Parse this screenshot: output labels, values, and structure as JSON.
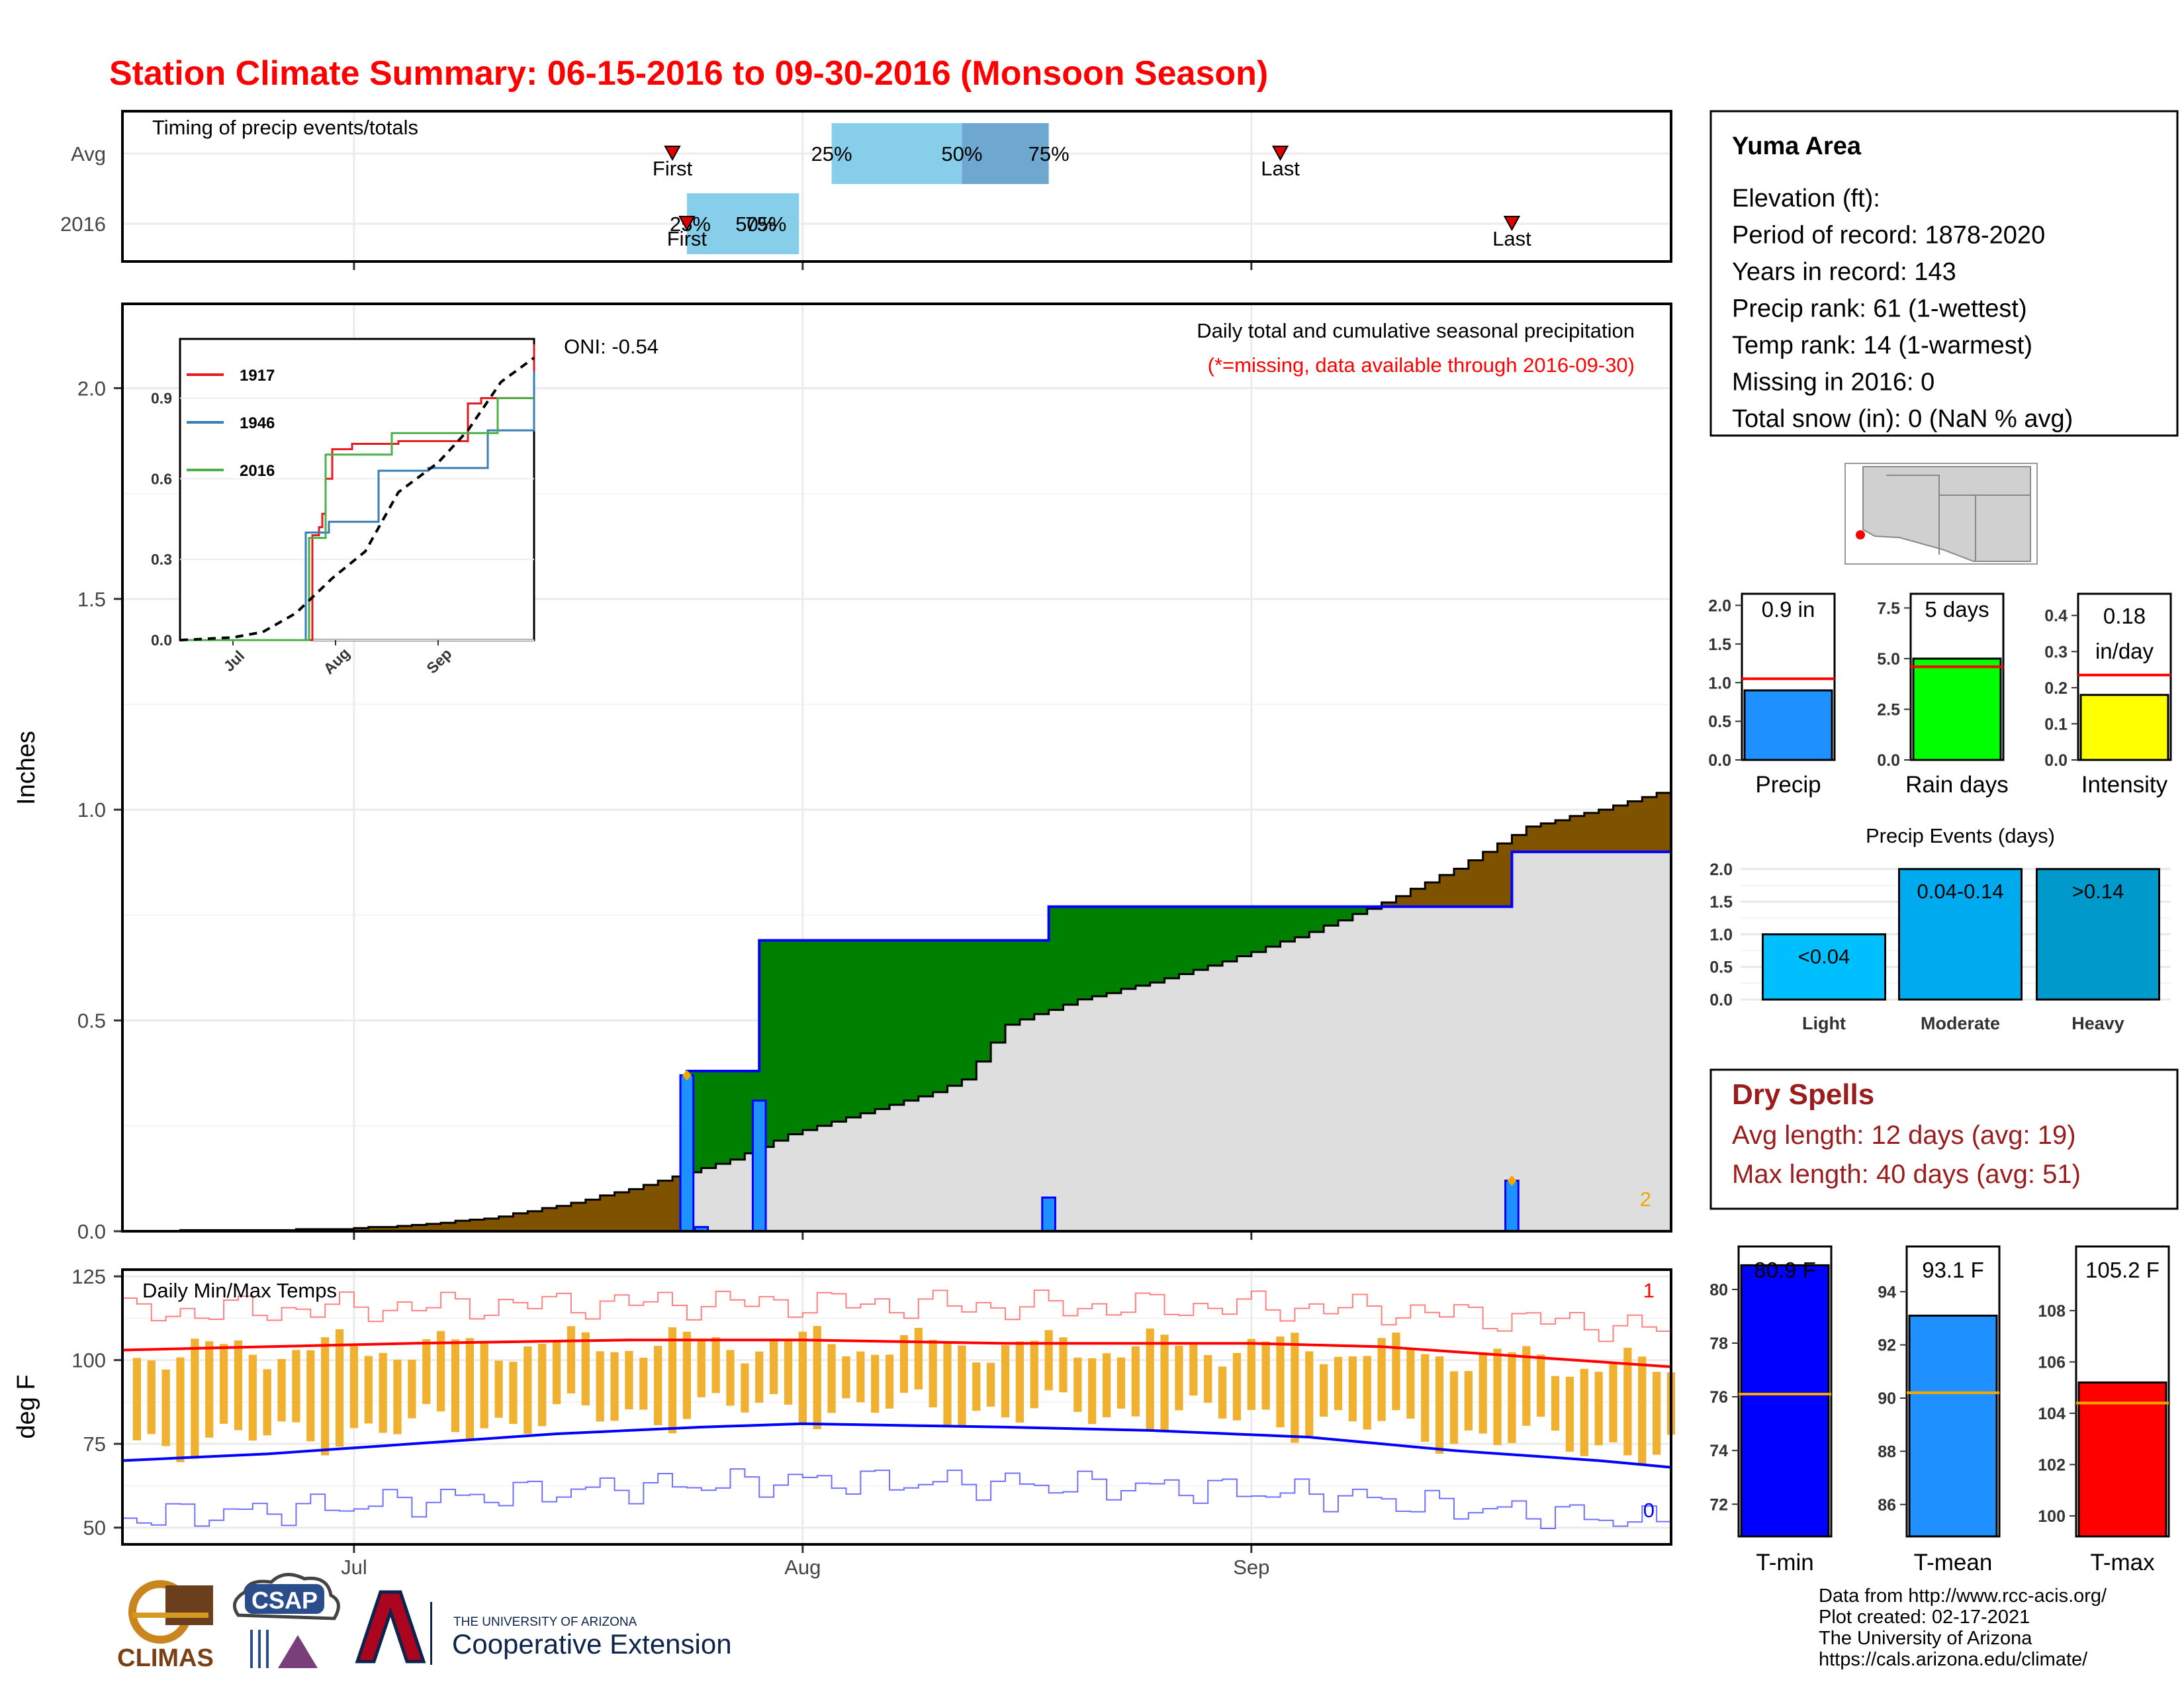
{
  "title": "Station Climate Summary: 06-15-2016 to 09-30-2016 (Monsoon Season)",
  "colors": {
    "title": "#ff0000",
    "brown": "#7f5200",
    "green": "#008000",
    "gray": "#dedede",
    "blue_bar": "#1e90ff",
    "blue_line": "#0000ff",
    "orange": "#f4a700",
    "red": "#ff0000",
    "dry": "#9b1c1c"
  },
  "timing": {
    "label": "Timing of precip events/totals",
    "rows": [
      "Avg",
      "2016"
    ],
    "avg": {
      "first": "07-23",
      "p25": "08-03",
      "p50": "08-12",
      "p75": "08-18",
      "last": "09-03"
    },
    "y2016": {
      "first": "07-24",
      "p25": "07-24",
      "p50": "07-29",
      "p75": "07-29",
      "last": "09-19"
    },
    "markers": {
      "first": "First",
      "last": "Last",
      "p25": "25%",
      "p50": "50%",
      "p75": "75%"
    }
  },
  "main": {
    "ylabel": "Inches",
    "yticks": [
      "0.0",
      "0.5",
      "1.0",
      "1.5",
      "2.0"
    ],
    "xticks": [
      "Jul",
      "Aug",
      "Sep"
    ],
    "oni": "ONI: -0.54",
    "annot1": "Daily total and cumulative seasonal precipitation",
    "annot2": "(*=missing, data available through 2016-09-30)",
    "corner": "2"
  },
  "chart_data": [
    {
      "type": "area",
      "title": "Daily total and cumulative seasonal precipitation",
      "ylabel": "Inches",
      "ylim": [
        0,
        2.2
      ],
      "x_range": [
        "06-15",
        "09-30"
      ],
      "cumulative_2016": [
        [
          "06-15",
          0
        ],
        [
          "07-23",
          0
        ],
        [
          "07-24",
          0.38
        ],
        [
          "07-29",
          0.69
        ],
        [
          "08-18",
          0.77
        ],
        [
          "09-19",
          0.9
        ],
        [
          "09-30",
          0.9
        ]
      ],
      "cumulative_avg": [
        [
          "06-15",
          0
        ],
        [
          "06-30",
          0.005
        ],
        [
          "07-05",
          0.015
        ],
        [
          "07-10",
          0.03
        ],
        [
          "07-15",
          0.06
        ],
        [
          "07-20",
          0.1
        ],
        [
          "07-24",
          0.14
        ],
        [
          "07-27",
          0.17
        ],
        [
          "07-31",
          0.23
        ],
        [
          "08-05",
          0.28
        ],
        [
          "08-10",
          0.33
        ],
        [
          "08-12",
          0.36
        ],
        [
          "08-15",
          0.49
        ],
        [
          "08-20",
          0.55
        ],
        [
          "08-25",
          0.59
        ],
        [
          "08-30",
          0.64
        ],
        [
          "09-05",
          0.71
        ],
        [
          "09-10",
          0.78
        ],
        [
          "09-15",
          0.86
        ],
        [
          "09-20",
          0.96
        ],
        [
          "09-25",
          1.0
        ],
        [
          "09-30",
          1.05
        ]
      ],
      "daily_bars": [
        [
          "07-24",
          0.37
        ],
        [
          "07-25",
          0.01
        ],
        [
          "07-29",
          0.31
        ],
        [
          "08-18",
          0.08
        ],
        [
          "09-19",
          0.12
        ]
      ]
    },
    {
      "type": "line",
      "title": "",
      "x_range": [
        "06-15",
        "09-30"
      ],
      "yticks": [
        "0.0",
        "0.3",
        "0.6",
        "0.9"
      ],
      "xticks": [
        "Jul",
        "Aug",
        "Sep"
      ],
      "legend_position": "top-left",
      "series": [
        {
          "name": "1917",
          "color": "#e41a1c",
          "points": [
            [
              "06-15",
              0
            ],
            [
              "07-24",
              0
            ],
            [
              "07-25",
              0.39
            ],
            [
              "07-27",
              0.42
            ],
            [
              "07-28",
              0.47
            ],
            [
              "07-29",
              0.6
            ],
            [
              "07-31",
              0.71
            ],
            [
              "08-06",
              0.73
            ],
            [
              "08-20",
              0.74
            ],
            [
              "09-05",
              0.74
            ],
            [
              "09-10",
              0.88
            ],
            [
              "09-14",
              0.9
            ],
            [
              "09-28",
              0.9
            ],
            [
              "09-30",
              1.1
            ]
          ]
        },
        {
          "name": "1946",
          "color": "#377eb8",
          "points": [
            [
              "06-15",
              0
            ],
            [
              "07-22",
              0
            ],
            [
              "07-23",
              0.4
            ],
            [
              "07-30",
              0.44
            ],
            [
              "08-13",
              0.44
            ],
            [
              "08-14",
              0.63
            ],
            [
              "08-29",
              0.64
            ],
            [
              "09-15",
              0.64
            ],
            [
              "09-16",
              0.78
            ],
            [
              "09-28",
              0.78
            ],
            [
              "09-30",
              1.0
            ]
          ]
        },
        {
          "name": "2016",
          "color": "#4daf4a",
          "points": [
            [
              "06-15",
              0
            ],
            [
              "07-23",
              0
            ],
            [
              "07-24",
              0.38
            ],
            [
              "07-29",
              0.69
            ],
            [
              "08-18",
              0.77
            ],
            [
              "09-19",
              0.9
            ],
            [
              "09-30",
              0.9
            ]
          ]
        },
        {
          "name": "",
          "color": "#000000",
          "dashed": true,
          "points": [
            [
              "06-15",
              0
            ],
            [
              "07-01",
              0.01
            ],
            [
              "07-10",
              0.03
            ],
            [
              "07-20",
              0.1
            ],
            [
              "07-31",
              0.23
            ],
            [
              "08-10",
              0.33
            ],
            [
              "08-20",
              0.55
            ],
            [
              "09-01",
              0.66
            ],
            [
              "09-10",
              0.78
            ],
            [
              "09-20",
              0.96
            ],
            [
              "09-30",
              1.05
            ]
          ]
        }
      ]
    },
    {
      "type": "line",
      "title": "Daily Min/Max Temps",
      "ylabel": "deg F",
      "ylim": [
        45,
        127
      ],
      "yticks": [
        "50",
        "75",
        "100",
        "125"
      ],
      "xticks": [
        "Jul",
        "Aug",
        "Sep"
      ],
      "avg_max": [
        [
          "06-15",
          103
        ],
        [
          "06-25",
          104
        ],
        [
          "07-05",
          105
        ],
        [
          "07-20",
          106
        ],
        [
          "08-01",
          106
        ],
        [
          "08-15",
          105
        ],
        [
          "09-01",
          105
        ],
        [
          "09-10",
          104
        ],
        [
          "09-20",
          101
        ],
        [
          "09-30",
          98
        ]
      ],
      "avg_min": [
        [
          "06-15",
          70
        ],
        [
          "06-25",
          72
        ],
        [
          "07-05",
          75
        ],
        [
          "07-15",
          78
        ],
        [
          "07-25",
          80
        ],
        [
          "08-01",
          81
        ],
        [
          "08-15",
          80
        ],
        [
          "08-25",
          79
        ],
        [
          "09-05",
          77
        ],
        [
          "09-15",
          73
        ],
        [
          "09-25",
          70
        ],
        [
          "09-30",
          68
        ]
      ],
      "record_max_label": "1",
      "record_min_label": "0"
    },
    {
      "type": "bar",
      "title": "Precip Events (days)",
      "categories": [
        "Light",
        "Moderate",
        "Heavy"
      ],
      "values": [
        1,
        2,
        2
      ],
      "labels": [
        "<0.04",
        "0.04-0.14",
        ">0.14"
      ],
      "ylim": [
        0,
        2.1
      ],
      "yticks": [
        "0.0",
        "0.5",
        "1.0",
        "1.5",
        "2.0"
      ]
    }
  ],
  "info": {
    "title": "Yuma Area",
    "lines": [
      "Elevation (ft):",
      "Period of record: 1878-2020",
      "Years in record: 143",
      "Precip rank: 61 (1-wettest)",
      "Temp rank: 14 (1-warmest)",
      "Missing in 2016: 0",
      "Total snow (in): 0 (NaN % avg)"
    ]
  },
  "summary_bars": [
    {
      "label": "Precip",
      "value_text": "0.9 in",
      "value": 0.9,
      "avg": 1.05,
      "ymax": 2.15,
      "yticks": [
        "0.0",
        "0.5",
        "1.0",
        "1.5",
        "2.0"
      ],
      "tickvals": [
        0,
        0.5,
        1,
        1.5,
        2
      ],
      "color": "#1e90ff"
    },
    {
      "label": "Rain days",
      "value_text": "5 days",
      "value": 5,
      "avg": 4.6,
      "ymax": 8.2,
      "yticks": [
        "0.0",
        "2.5",
        "5.0",
        "7.5"
      ],
      "tickvals": [
        0,
        2.5,
        5,
        7.5
      ],
      "color": "#00ff00"
    },
    {
      "label": "Intensity",
      "value_text": "0.18",
      "value_text2": "in/day",
      "value": 0.18,
      "avg": 0.235,
      "ymax": 0.46,
      "yticks": [
        "0.0",
        "0.1",
        "0.2",
        "0.3",
        "0.4"
      ],
      "tickvals": [
        0,
        0.1,
        0.2,
        0.3,
        0.4
      ],
      "color": "#ffff00"
    }
  ],
  "dry": {
    "title": "Dry Spells",
    "avg": "Avg length: 12 days (avg: 19)",
    "max": "Max length: 40 days (avg: 51)"
  },
  "temp_bars": [
    {
      "label": "T-min",
      "value_text": "80.9 F",
      "value": 80.9,
      "avg": 76.1,
      "ymin": 70.8,
      "ymax": 81.6,
      "yticks": [
        "72",
        "74",
        "76",
        "78",
        "80"
      ],
      "tickvals": [
        72,
        74,
        76,
        78,
        80
      ],
      "color": "#0000ff"
    },
    {
      "label": "T-mean",
      "value_text": "93.1 F",
      "value": 93.1,
      "avg": 90.2,
      "ymin": 84.8,
      "ymax": 95.7,
      "yticks": [
        "86",
        "88",
        "90",
        "92",
        "94"
      ],
      "tickvals": [
        86,
        88,
        90,
        92,
        94
      ],
      "color": "#1e90ff"
    },
    {
      "label": "T-max",
      "value_text": "105.2 F",
      "value": 105.2,
      "avg": 104.4,
      "ymin": 99.2,
      "ymax": 110.5,
      "yticks": [
        "100",
        "102",
        "104",
        "106",
        "108"
      ],
      "tickvals": [
        100,
        102,
        104,
        106,
        108
      ],
      "color": "#ff0000"
    }
  ],
  "footer": {
    "lines": [
      "Data from http://www.rcc-acis.org/",
      "Plot created: 02-17-2021",
      "The University of Arizona",
      "https://cals.arizona.edu/climate/"
    ],
    "climas": "CLIMAS",
    "csap": "CSAP",
    "ua_small": "THE UNIVERSITY OF ARIZONA",
    "ua_big": "Cooperative Extension"
  }
}
